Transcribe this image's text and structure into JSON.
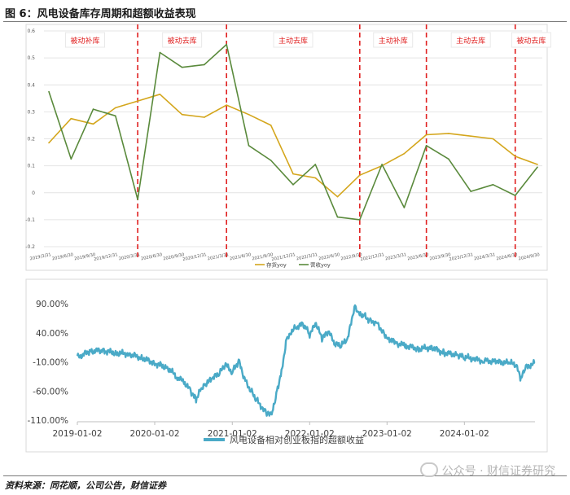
{
  "header": {
    "title": "图 6：风电设备库存周期和超额收益表现"
  },
  "footer": {
    "source": "资料来源：同花顺，公司公告，财信证券",
    "watermark": "公众号 · 财信证券研究"
  },
  "chart_data": [
    {
      "type": "line",
      "title": "",
      "categories": [
        "2019/3/31",
        "2019/6/30",
        "2019/9/30",
        "2019/12/31",
        "2020/3/31",
        "2020/6/30",
        "2020/9/30",
        "2020/12/31",
        "2021/3/31",
        "2021/6/30",
        "2021/9/30",
        "2021/12/31",
        "2022/3/31",
        "2022/6/30",
        "2022/9/30",
        "2022/12/31",
        "2023/3/31",
        "2023/6/30",
        "2023/9/30",
        "2023/12/31",
        "2024/3/31",
        "2024/6/30",
        "2024/9/30"
      ],
      "series": [
        {
          "name": "存货yoy",
          "color": "#d4a61c",
          "values": [
            0.185,
            0.275,
            0.255,
            0.315,
            0.34,
            0.365,
            0.29,
            0.28,
            0.325,
            0.29,
            0.25,
            0.07,
            0.055,
            -0.015,
            0.065,
            0.1,
            0.145,
            0.215,
            0.22,
            0.21,
            0.2,
            0.135,
            0.105
          ]
        },
        {
          "name": "营收yoy",
          "color": "#5a8a3c",
          "values": [
            0.375,
            0.125,
            0.31,
            0.285,
            -0.025,
            0.52,
            0.465,
            0.475,
            0.55,
            0.175,
            0.12,
            0.03,
            0.105,
            -0.09,
            -0.1,
            0.105,
            -0.055,
            0.175,
            0.125,
            0.005,
            0.03,
            -0.01,
            0.095
          ]
        }
      ],
      "ylim": [
        -0.2,
        0.6
      ],
      "yticks": [
        "0.6",
        "0.5",
        "0.4",
        "0.3",
        "0.2",
        "0.1",
        "0",
        "-0.1",
        "-0.2"
      ],
      "grid": true,
      "legend": "bottom",
      "phase_dividers": [
        "2020/3/31",
        "2021/3/31",
        "2022/9/30",
        "2023/6/30",
        "2024/6/30"
      ],
      "divider_color": "#e02020",
      "phases": [
        {
          "label": "被动补库",
          "from": "2019/3/31",
          "to": "2020/3/31"
        },
        {
          "label": "被动去库",
          "from": "2020/3/31",
          "to": "2021/3/31"
        },
        {
          "label": "主动去库",
          "from": "2021/3/31",
          "to": "2022/9/30"
        },
        {
          "label": "主动补库",
          "from": "2022/9/30",
          "to": "2023/6/30"
        },
        {
          "label": "主动去库",
          "from": "2023/6/30",
          "to": "2024/6/30"
        },
        {
          "label": "被动去库",
          "from": "2024/6/30",
          "to": "2024/9/30"
        }
      ]
    },
    {
      "type": "line",
      "title": "",
      "xlabel": "",
      "ylabel": "",
      "x_range": [
        "2019-01-02",
        "2024-11-30"
      ],
      "xticks": [
        "2019-01-02",
        "2020-01-02",
        "2021-01-02",
        "2022-01-02",
        "2023-01-02",
        "2024-01-02"
      ],
      "yticks": [
        "90.00%",
        "40.00%",
        "-10.00%",
        "-60.00%",
        "-110.00%"
      ],
      "ylim": [
        -110,
        90
      ],
      "grid": false,
      "legend": "bottom",
      "series": [
        {
          "name": "风电设备相对创业板指的超额收益",
          "color": "#4aaac7",
          "unit": "%",
          "points": [
            [
              "2019-01-02",
              -2
            ],
            [
              "2019-03-01",
              8
            ],
            [
              "2019-05-01",
              10
            ],
            [
              "2019-07-01",
              5
            ],
            [
              "2019-09-01",
              4
            ],
            [
              "2019-11-01",
              -3
            ],
            [
              "2020-01-02",
              -12
            ],
            [
              "2020-03-01",
              -20
            ],
            [
              "2020-04-15",
              -35
            ],
            [
              "2020-05-20",
              -45
            ],
            [
              "2020-06-20",
              -60
            ],
            [
              "2020-07-15",
              -75
            ],
            [
              "2020-08-10",
              -55
            ],
            [
              "2020-09-01",
              -48
            ],
            [
              "2020-10-01",
              -38
            ],
            [
              "2020-11-01",
              -30
            ],
            [
              "2020-12-01",
              -15
            ],
            [
              "2021-01-02",
              -28
            ],
            [
              "2021-02-01",
              -8
            ],
            [
              "2021-03-01",
              -40
            ],
            [
              "2021-04-01",
              -60
            ],
            [
              "2021-05-01",
              -78
            ],
            [
              "2021-06-01",
              -92
            ],
            [
              "2021-06-20",
              -100
            ],
            [
              "2021-07-10",
              -95
            ],
            [
              "2021-08-01",
              -60
            ],
            [
              "2021-08-25",
              -20
            ],
            [
              "2021-09-15",
              30
            ],
            [
              "2021-10-01",
              40
            ],
            [
              "2021-11-01",
              50
            ],
            [
              "2021-12-01",
              55
            ],
            [
              "2022-01-02",
              38
            ],
            [
              "2022-02-01",
              55
            ],
            [
              "2022-03-01",
              30
            ],
            [
              "2022-04-01",
              42
            ],
            [
              "2022-05-01",
              20
            ],
            [
              "2022-06-01",
              18
            ],
            [
              "2022-07-01",
              30
            ],
            [
              "2022-08-01",
              85
            ],
            [
              "2022-08-20",
              72
            ],
            [
              "2022-09-15",
              70
            ],
            [
              "2022-10-15",
              60
            ],
            [
              "2022-11-15",
              58
            ],
            [
              "2022-12-15",
              40
            ],
            [
              "2023-01-02",
              32
            ],
            [
              "2023-02-15",
              22
            ],
            [
              "2023-04-01",
              18
            ],
            [
              "2023-06-01",
              12
            ],
            [
              "2023-08-01",
              15
            ],
            [
              "2023-10-01",
              5
            ],
            [
              "2023-12-01",
              2
            ],
            [
              "2024-01-02",
              -2
            ],
            [
              "2024-02-15",
              -5
            ],
            [
              "2024-04-01",
              -8
            ],
            [
              "2024-06-01",
              -10
            ],
            [
              "2024-08-01",
              -12
            ],
            [
              "2024-09-01",
              -15
            ],
            [
              "2024-09-25",
              -40
            ],
            [
              "2024-10-15",
              -20
            ],
            [
              "2024-11-30",
              -12
            ]
          ]
        }
      ]
    }
  ]
}
